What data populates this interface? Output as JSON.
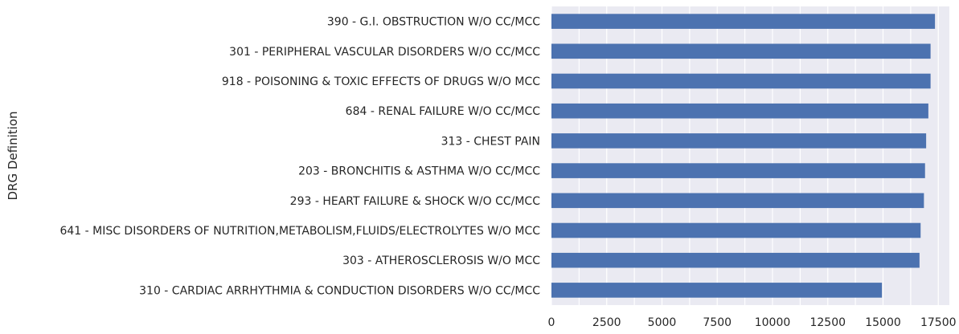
{
  "chart_data": {
    "type": "bar",
    "orientation": "horizontal",
    "style": "seaborn-darkgrid",
    "bar_color": "#4c72b0",
    "plot_background": "#eaeaf2",
    "grid_color": "#ffffff",
    "grid": true,
    "ylabel": "DRG Definition",
    "xlabel": "",
    "xlim": [
      0,
      18000
    ],
    "xticks": [
      0,
      2500,
      5000,
      7500,
      10000,
      12500,
      15000,
      17500
    ],
    "xtick_labels": [
      "0",
      "2500",
      "5000",
      "7500",
      "10000",
      "12500",
      "15000",
      "17500"
    ],
    "categories": [
      "390 - G.I. OBSTRUCTION W/O CC/MCC",
      "301 - PERIPHERAL VASCULAR DISORDERS W/O CC/MCC",
      "918 - POISONING & TOXIC EFFECTS OF DRUGS W/O MCC",
      "684 - RENAL FAILURE W/O CC/MCC",
      "313 - CHEST PAIN",
      "203 - BRONCHITIS & ASTHMA W/O CC/MCC",
      "293 - HEART FAILURE & SHOCK W/O CC/MCC",
      "641 - MISC DISORDERS OF NUTRITION,METABOLISM,FLUIDS/ELECTROLYTES W/O MCC",
      "303 - ATHEROSCLEROSIS W/O MCC",
      "310 - CARDIAC ARRHYTHMIA & CONDUCTION DISORDERS W/O CC/MCC"
    ],
    "values": [
      17350,
      17150,
      17150,
      17050,
      16950,
      16900,
      16850,
      16700,
      16650,
      14950
    ]
  }
}
